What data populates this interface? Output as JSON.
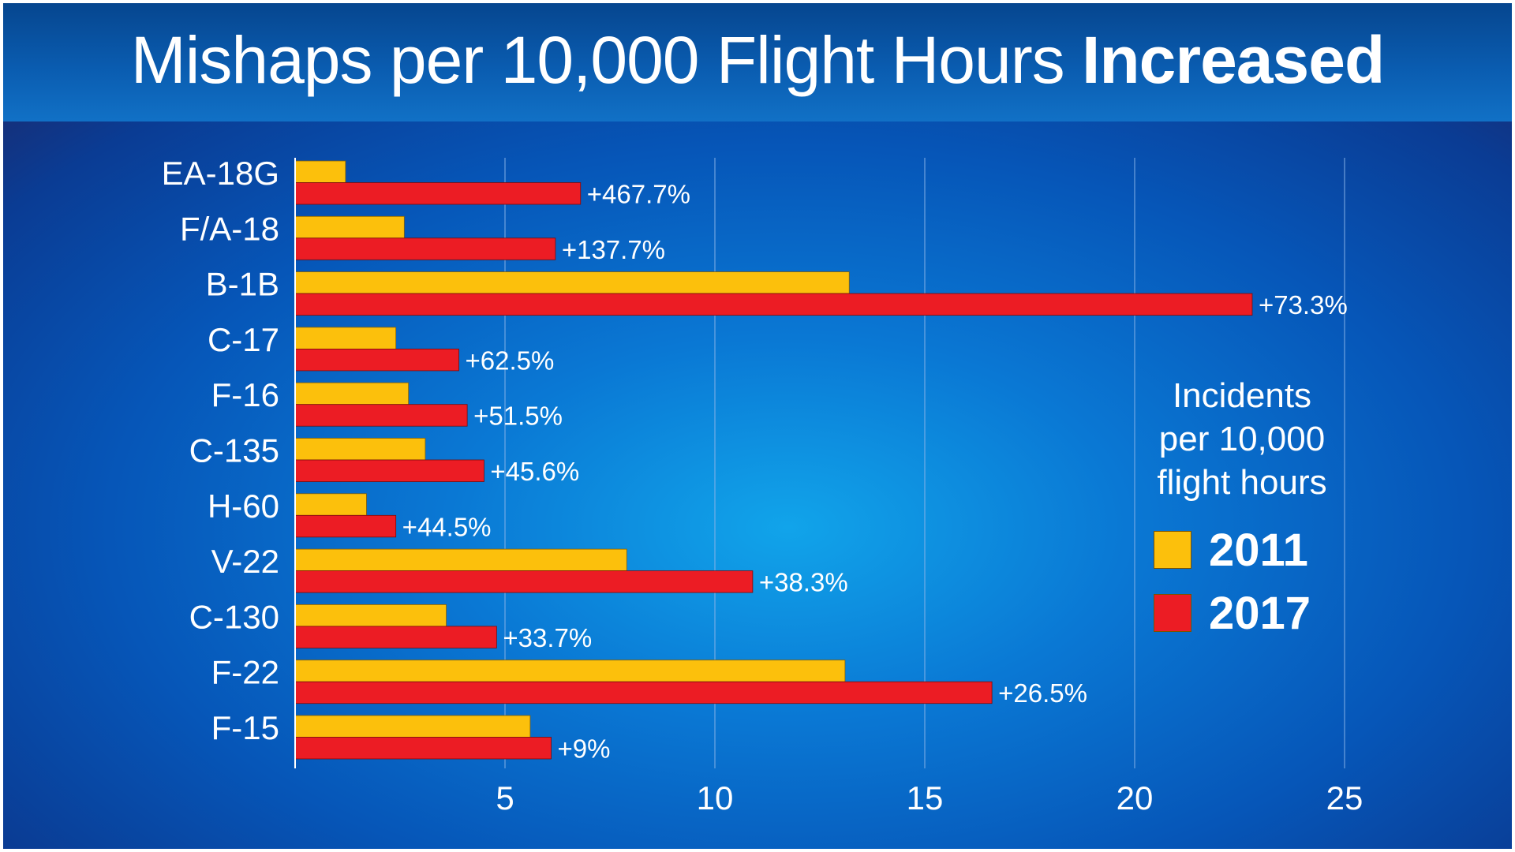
{
  "title": {
    "regular": "Mishaps per 10,000 Flight Hours",
    "bold": "Increased"
  },
  "colors": {
    "series_2011": "#fcc00c",
    "series_2017": "#ec1c24",
    "gridline": "#8ab4e8",
    "axis": "#ffffff"
  },
  "chart_data": {
    "type": "bar",
    "orientation": "horizontal",
    "title": "Mishaps per 10,000 Flight Hours Increased",
    "xlabel": "",
    "ylabel": "",
    "xlim": [
      0,
      25
    ],
    "x_ticks": [
      "5",
      "10",
      "15",
      "20",
      "25"
    ],
    "grid": true,
    "categories": [
      "EA-18G",
      "F/A-18",
      "B-1B",
      "C-17",
      "F-16",
      "C-135",
      "H-60",
      "V-22",
      "C-130",
      "F-22",
      "F-15"
    ],
    "series": [
      {
        "name": "2011",
        "values": [
          1.2,
          2.6,
          13.2,
          2.4,
          2.7,
          3.1,
          1.7,
          7.9,
          3.6,
          13.1,
          5.6
        ]
      },
      {
        "name": "2017",
        "values": [
          6.8,
          6.2,
          22.8,
          3.9,
          4.1,
          4.5,
          2.4,
          10.9,
          4.8,
          16.6,
          6.1
        ]
      }
    ],
    "change_labels": [
      "+467.7%",
      "+137.7%",
      "+73.3%",
      "+62.5%",
      "+51.5%",
      "+45.6%",
      "+44.5%",
      "+38.3%",
      "+33.7%",
      "+26.5%",
      "+9%"
    ],
    "legend": {
      "title": "Incidents per 10,000 flight hours",
      "title_lines": [
        "Incidents",
        "per 10,000",
        "flight hours"
      ],
      "entries": [
        "2011",
        "2017"
      ],
      "placement": "right"
    }
  }
}
